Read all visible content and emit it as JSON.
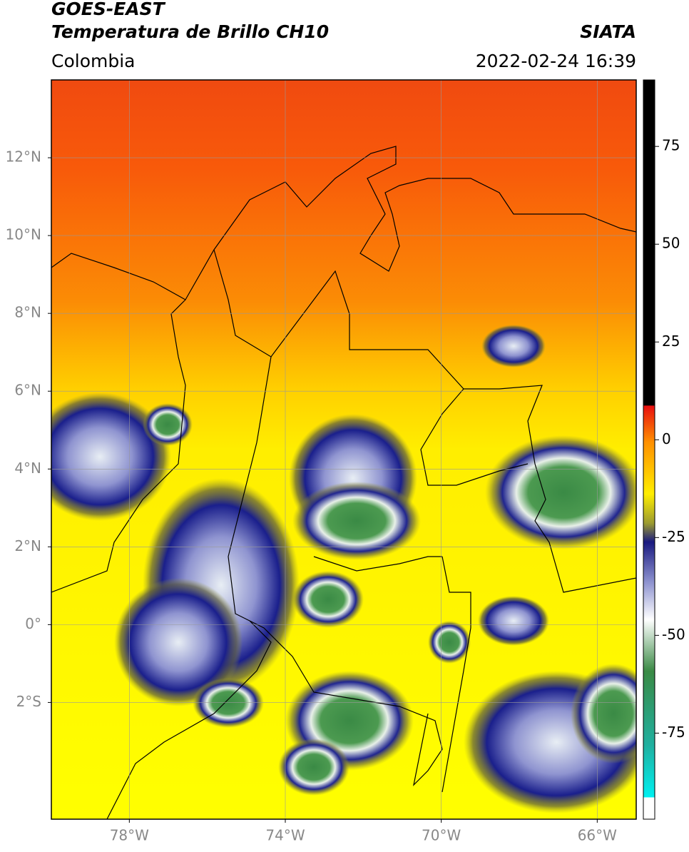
{
  "header": {
    "title": "GOES-EAST",
    "subtitle": "Temperatura de Brillo CH10",
    "region": "Colombia",
    "source": "SIATA",
    "datetime": "2022-02-24 16:39"
  },
  "map": {
    "lon_range": [
      -80,
      -65
    ],
    "lat_range": [
      -5,
      14
    ],
    "lat_ticks": [
      {
        "value": 12,
        "label": "12°N"
      },
      {
        "value": 10,
        "label": "10°N"
      },
      {
        "value": 8,
        "label": "8°N"
      },
      {
        "value": 6,
        "label": "6°N"
      },
      {
        "value": 4,
        "label": "4°N"
      },
      {
        "value": 2,
        "label": "2°N"
      },
      {
        "value": 0,
        "label": "0°"
      },
      {
        "value": -2,
        "label": "2°S"
      }
    ],
    "lon_ticks": [
      {
        "value": -78,
        "label": "78°W"
      },
      {
        "value": -74,
        "label": "74°W"
      },
      {
        "value": -70,
        "label": "70°W"
      },
      {
        "value": -66,
        "label": "66°W"
      }
    ]
  },
  "colorbar": {
    "range": [
      -97,
      92
    ],
    "ticks": [
      75,
      50,
      25,
      0,
      -25,
      -50,
      -75
    ]
  }
}
